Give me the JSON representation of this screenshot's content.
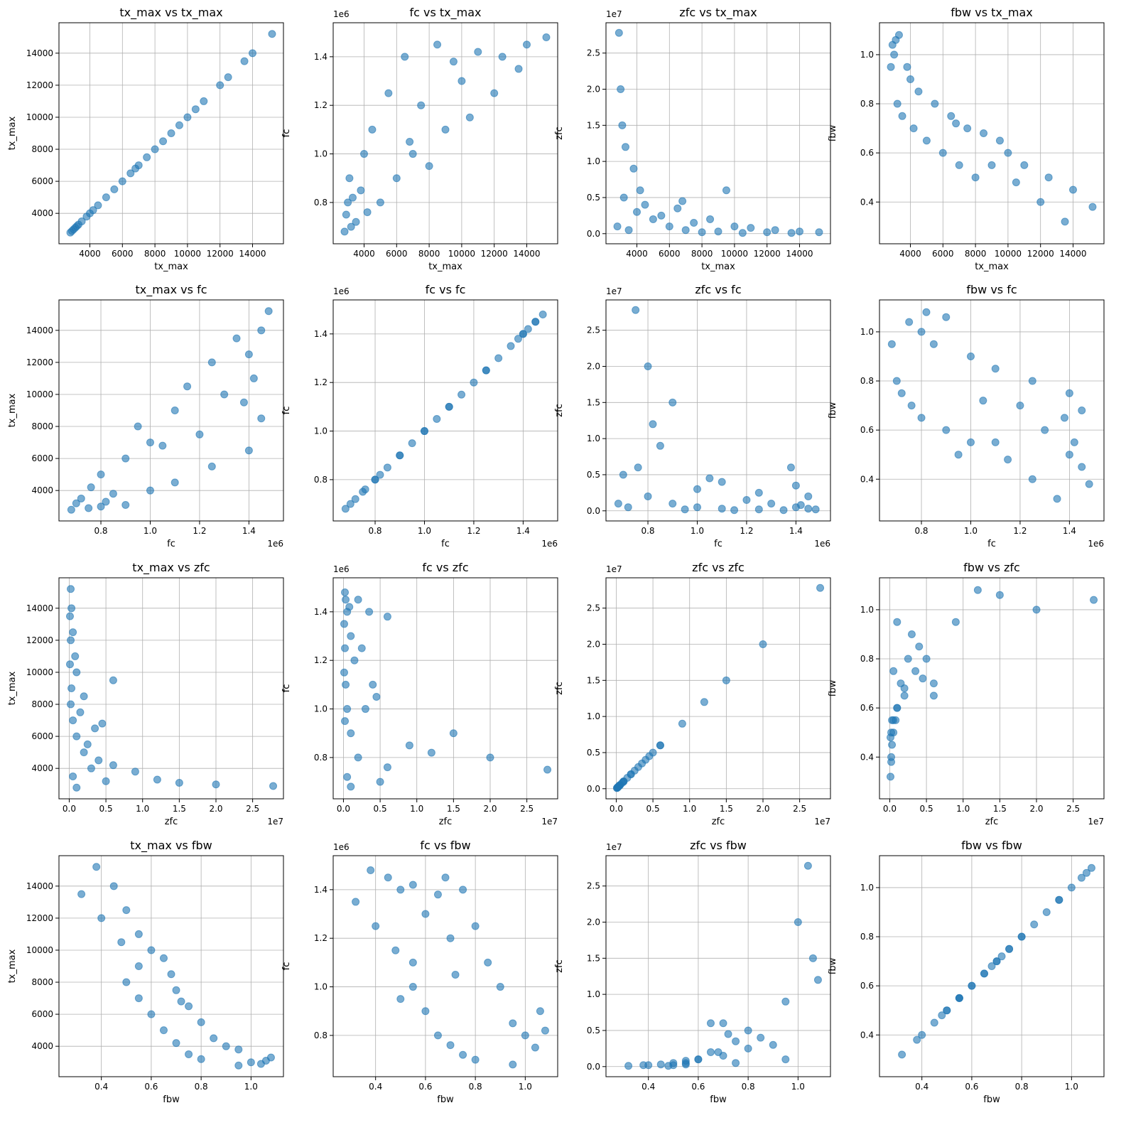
{
  "chart_data": {
    "type": "scatter",
    "color": "#1f77b4",
    "grid": true,
    "titles": [
      [
        "tx_max vs tx_max",
        "fc vs tx_max",
        "zfc vs tx_max",
        "fbw vs tx_max"
      ],
      [
        "tx_max vs fc",
        "fc vs fc",
        "zfc vs fc",
        "fbw vs fc"
      ],
      [
        "tx_max vs zfc",
        "fc vs zfc",
        "zfc vs zfc",
        "fbw vs zfc"
      ],
      [
        "tx_max vs fbw",
        "fc vs fbw",
        "zfc vs fbw",
        "fbw vs fbw"
      ]
    ],
    "variables": [
      {
        "name": "tx_max",
        "lim": [
          2100,
          15900
        ],
        "ticks": [
          4000,
          6000,
          8000,
          10000,
          12000,
          14000
        ],
        "values": [
          2800,
          2900,
          3000,
          3200,
          3100,
          3500,
          3800,
          4000,
          4200,
          4500,
          5000,
          5500,
          6000,
          6500,
          7000,
          7500,
          8000,
          8500,
          9000,
          10000,
          10500,
          11000,
          12000,
          12500,
          13500,
          14000,
          15200,
          3300,
          6800,
          9500
        ]
      },
      {
        "name": "fc",
        "offset": "1e6",
        "lim": [
          0.63,
          1.54
        ],
        "ticks": [
          0.8,
          {
            "value": 1,
            "label": "1.0"
          },
          1.2,
          1.4
        ],
        "values": [
          0.68,
          0.75,
          0.8,
          0.7,
          0.9,
          0.72,
          0.85,
          1.0,
          0.76,
          1.1,
          0.8,
          1.25,
          0.9,
          1.4,
          1.0,
          1.2,
          0.95,
          1.45,
          1.1,
          1.3,
          1.15,
          1.42,
          1.25,
          1.4,
          1.35,
          1.45,
          1.48,
          0.82,
          1.05,
          1.38
        ]
      },
      {
        "name": "zfc",
        "offset": "1e7",
        "lim": [
          -0.14,
          2.92
        ],
        "ticks": [
          {
            "value": 0,
            "label": "0.0"
          },
          0.5,
          {
            "value": 1,
            "label": "1.0"
          },
          1.5,
          {
            "value": 2,
            "label": "2.0"
          },
          2.5
        ],
        "values": [
          0.1,
          2.78,
          2.0,
          0.5,
          1.5,
          0.05,
          0.9,
          0.3,
          0.6,
          0.4,
          0.2,
          0.25,
          0.1,
          0.35,
          0.05,
          0.15,
          0.02,
          0.2,
          0.03,
          0.1,
          0.01,
          0.08,
          0.02,
          0.05,
          0.01,
          0.03,
          0.02,
          1.2,
          0.45,
          0.6
        ]
      },
      {
        "name": "fbw",
        "lim": [
          0.23,
          1.13
        ],
        "ticks": [
          0.4,
          0.6,
          0.8,
          {
            "value": 1,
            "label": "1.0"
          }
        ],
        "values": [
          0.95,
          1.04,
          1.0,
          0.8,
          1.06,
          0.75,
          0.95,
          0.9,
          0.7,
          0.85,
          0.65,
          0.8,
          0.6,
          0.75,
          0.55,
          0.7,
          0.5,
          0.68,
          0.55,
          0.6,
          0.48,
          0.55,
          0.4,
          0.5,
          0.32,
          0.45,
          0.38,
          1.08,
          0.72,
          0.65
        ]
      }
    ]
  }
}
